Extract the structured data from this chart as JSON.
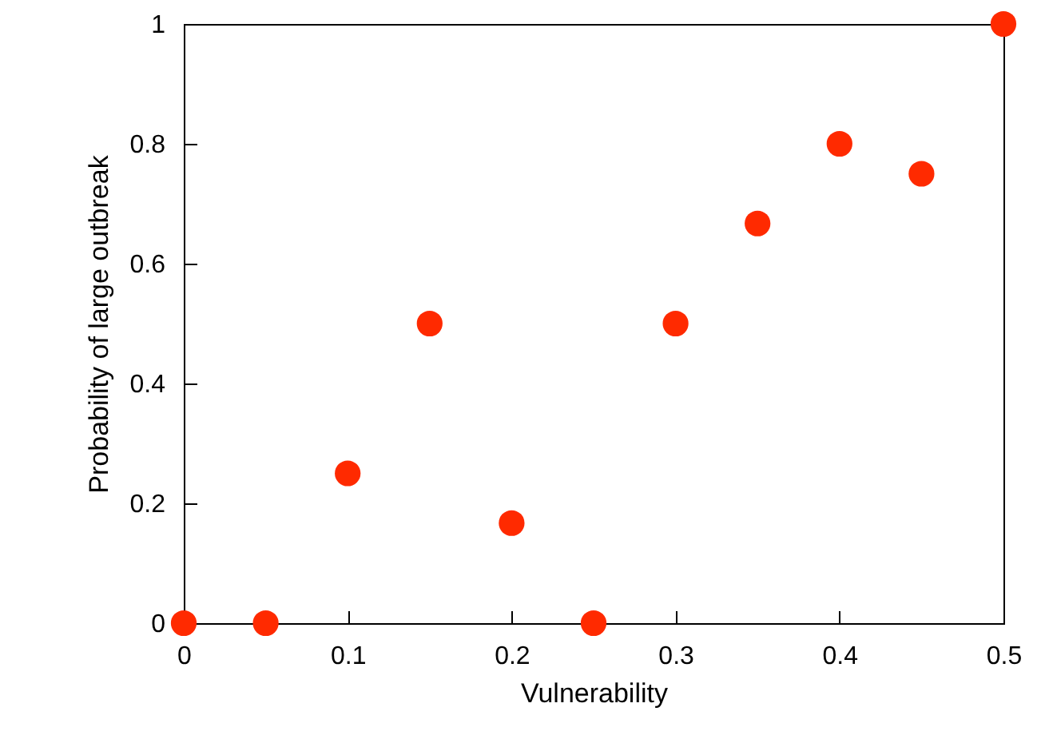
{
  "chart_data": {
    "type": "scatter",
    "xlabel": "Vulnerability",
    "ylabel": "Probability of large outbreak",
    "x": [
      0,
      0.05,
      0.1,
      0.15,
      0.2,
      0.25,
      0.3,
      0.35,
      0.4,
      0.45,
      0.5
    ],
    "series": [
      {
        "color": "#ff2a00",
        "values": [
          0,
          0,
          0.25,
          0.5,
          0.167,
          0,
          0.5,
          0.667,
          0.8,
          0.75,
          1
        ]
      }
    ],
    "xlim": [
      0,
      0.5
    ],
    "xticks": [
      0,
      0.1,
      0.2,
      0.3,
      0.4,
      0.5
    ],
    "ylim": [
      0,
      1
    ],
    "yticks": [
      0,
      0.2,
      0.4,
      0.6,
      0.8,
      1
    ],
    "grid": false,
    "marker": "circle"
  }
}
